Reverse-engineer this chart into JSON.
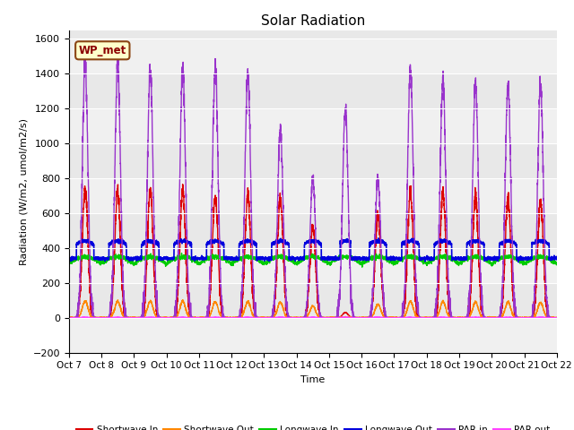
{
  "title": "Solar Radiation",
  "ylabel": "Radiation (W/m2, umol/m2/s)",
  "xlabel": "Time",
  "ylim": [
    -200,
    1650
  ],
  "yticks": [
    -200,
    0,
    200,
    400,
    600,
    800,
    1000,
    1200,
    1400,
    1600
  ],
  "x_tick_labels": [
    "Oct 7",
    "Oct 8",
    "Oct 9",
    "Oct 10",
    "Oct 11",
    "Oct 12",
    "Oct 13",
    "Oct 14",
    "Oct 15",
    "Oct 16",
    "Oct 17",
    "Oct 18",
    "Oct 19",
    "Oct 20",
    "Oct 21",
    "Oct 22"
  ],
  "station_label": "WP_met",
  "bg_color": "#e8e8e8",
  "bg_light": "#f0f0f0",
  "series": {
    "shortwave_in": {
      "color": "#dd0000",
      "label": "Shortwave In",
      "lw": 1.0
    },
    "shortwave_out": {
      "color": "#ff8800",
      "label": "Shortwave Out",
      "lw": 1.0
    },
    "longwave_in": {
      "color": "#00cc00",
      "label": "Longwave In",
      "lw": 1.0
    },
    "longwave_out": {
      "color": "#0000dd",
      "label": "Longwave Out",
      "lw": 1.2
    },
    "par_in": {
      "color": "#9933cc",
      "label": "PAR in",
      "lw": 1.0
    },
    "par_out": {
      "color": "#ff44ff",
      "label": "PAR out",
      "lw": 1.0
    }
  },
  "n_days": 15,
  "pts_per_day": 288,
  "sw_in_peaks": [
    750,
    730,
    730,
    730,
    700,
    710,
    680,
    520,
    30,
    590,
    720,
    710,
    690,
    680,
    670
  ],
  "par_in_peaks": [
    1460,
    1450,
    1420,
    1430,
    1440,
    1410,
    1080,
    800,
    1200,
    800,
    1430,
    1350,
    1350,
    1330,
    1330
  ],
  "lw_base": 310,
  "lw_out_base": 350
}
